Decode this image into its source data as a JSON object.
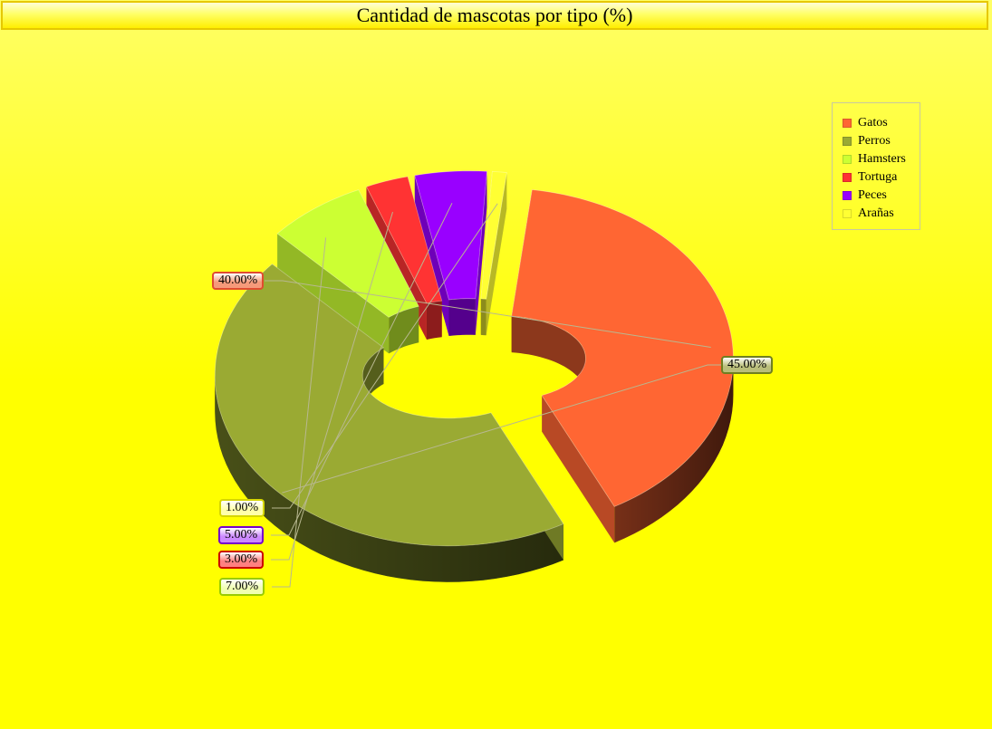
{
  "chart_data": {
    "type": "pie",
    "title": "Cantidad de mascotas por tipo (%)",
    "legend_position": "top-right",
    "slices": [
      {
        "name": "Gatos",
        "value": 40,
        "label": "40.00%",
        "color": "#ff6633",
        "label_bg": "#f59a7a",
        "label_border": "#e04c30"
      },
      {
        "name": "Perros",
        "value": 45,
        "label": "45.00%",
        "color": "#9aaa33",
        "label_bg": "#b9be7a",
        "label_border": "#6f7f20"
      },
      {
        "name": "Hamsters",
        "value": 7,
        "label": "7.00%",
        "color": "#ccff33",
        "label_bg": "#f0ffb0",
        "label_border": "#99cc00"
      },
      {
        "name": "Tortuga",
        "value": 3,
        "label": "3.00%",
        "color": "#ff3333",
        "label_bg": "#ff8080",
        "label_border": "#cc0000"
      },
      {
        "name": "Peces",
        "value": 5,
        "label": "5.00%",
        "color": "#9900ff",
        "label_bg": "#cc88ff",
        "label_border": "#7700cc"
      },
      {
        "name": "Arañas",
        "value": 1,
        "label": "1.00%",
        "color": "#ffff33",
        "label_bg": "#ffffaa",
        "label_border": "#d6d600"
      }
    ]
  }
}
